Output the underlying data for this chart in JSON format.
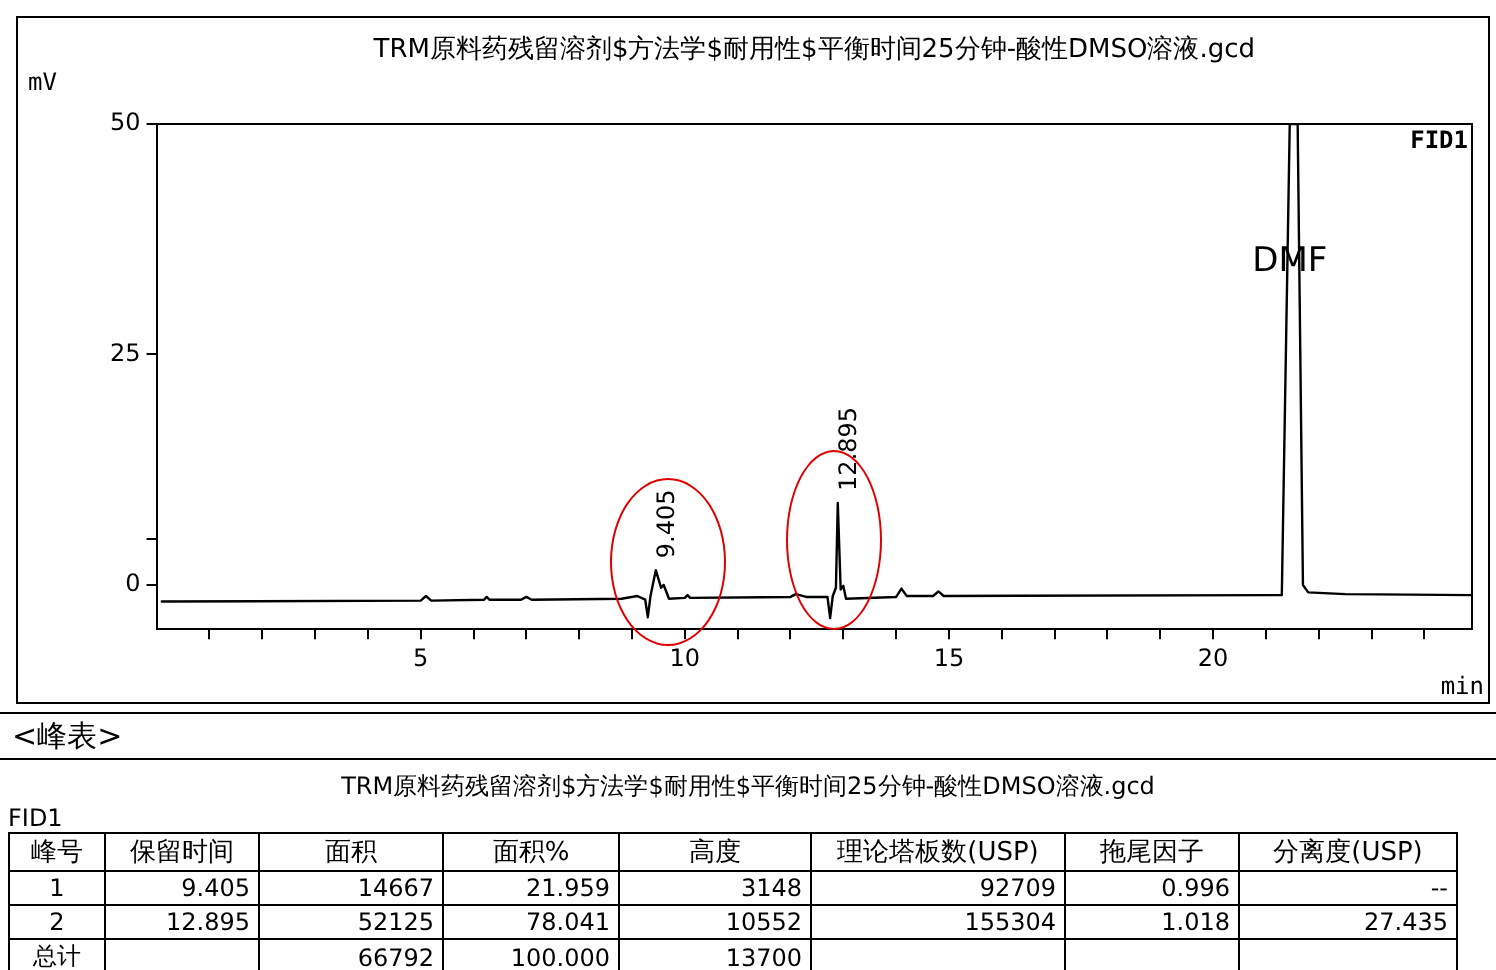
{
  "chart_data": [
    {
      "type": "line",
      "title": "TRM原料药残留溶剂$方法学$耐用性$平衡时间25分钟-酸性DMSO溶液.gcd",
      "ylabel": "mV",
      "xlabel": "min",
      "xlim": [
        0,
        24.9
      ],
      "ylim": [
        -4.8,
        50
      ],
      "xticks": [
        {
          "value": 1,
          "label": null
        },
        {
          "value": 2,
          "label": null
        },
        {
          "value": 3,
          "label": null
        },
        {
          "value": 4,
          "label": null
        },
        5,
        {
          "value": 6,
          "label": null
        },
        {
          "value": 7,
          "label": null
        },
        {
          "value": 8,
          "label": null
        },
        {
          "value": 9,
          "label": null
        },
        10,
        {
          "value": 11,
          "label": null
        },
        {
          "value": 12,
          "label": null
        },
        {
          "value": 13,
          "label": null
        },
        {
          "value": 14,
          "label": null
        },
        15,
        {
          "value": 16,
          "label": null
        },
        {
          "value": 17,
          "label": null
        },
        {
          "value": 18,
          "label": null
        },
        {
          "value": 19,
          "label": null
        },
        20,
        {
          "value": 21,
          "label": null
        },
        {
          "value": 22,
          "label": null
        },
        {
          "value": 23,
          "label": null
        },
        {
          "value": 24,
          "label": null
        }
      ],
      "yticks": [
        0,
        {
          "value": 5,
          "label": null
        },
        25,
        50
      ],
      "grid": false,
      "legend": false,
      "marker": "none",
      "line_style": "solid",
      "x": [
        0.1,
        5.0,
        5.1,
        5.2,
        6.2,
        6.25,
        6.3,
        6.9,
        7.0,
        7.1,
        8.8,
        9.1,
        9.25,
        9.3,
        9.35,
        9.45,
        9.55,
        9.6,
        9.7,
        10.0,
        10.05,
        10.1,
        12.0,
        12.1,
        12.3,
        12.7,
        12.75,
        12.8,
        12.86,
        12.895,
        12.95,
        13.0,
        13.05,
        14.0,
        14.1,
        14.2,
        14.7,
        14.8,
        14.9,
        21.3,
        21.45,
        21.6,
        21.7,
        21.8,
        22.5,
        24.9
      ],
      "series": [
        {
          "color": "#000000",
          "values": [
            -1.8,
            -1.7,
            -1.2,
            -1.7,
            -1.6,
            -1.3,
            -1.6,
            -1.6,
            -1.3,
            -1.6,
            -1.5,
            -1.2,
            -1.6,
            -3.5,
            -1.2,
            1.6,
            -0.3,
            0.0,
            -1.5,
            -1.4,
            -1.1,
            -1.4,
            -1.3,
            -1.0,
            -1.3,
            -1.3,
            -3.6,
            -1.2,
            -0.3,
            8.9,
            -0.5,
            -0.1,
            -1.5,
            -1.3,
            -0.4,
            -1.2,
            -1.2,
            -0.7,
            -1.2,
            -1.1,
            50,
            50,
            0,
            -0.8,
            -1.0,
            -1.1
          ]
        }
      ],
      "annotations": [
        {
          "text": "9.405",
          "x": 9.45,
          "y": 1.6
        },
        {
          "text": "12.895",
          "x": 12.895,
          "y": 8.9
        },
        {
          "text": "DMF",
          "x": 21.45,
          "y": 35
        },
        "FID1"
      ]
    },
    {
      "type": "other",
      "title": "TRM原料药残留溶剂$方法学$耐用性$平衡时间25分钟-酸性DMSO溶液.gcd",
      "annotations": [
        "<峰表>",
        "FID1"
      ],
      "categories": [
        "峰号",
        "保留时间",
        "面积",
        "面积%",
        "高度",
        "理论塔板数(USP)",
        "拖尾因子",
        "分离度(USP)"
      ],
      "cell_labels": [
        [
          "1",
          "9.405",
          "14667",
          "21.959",
          "3148",
          "92709",
          "0.996",
          "--"
        ],
        [
          "2",
          "12.895",
          "52125",
          "78.041",
          "10552",
          "155304",
          "1.018",
          "27.435"
        ],
        [
          "总计",
          null,
          "66792",
          "100.000",
          "13700",
          null,
          null,
          null
        ]
      ]
    }
  ]
}
